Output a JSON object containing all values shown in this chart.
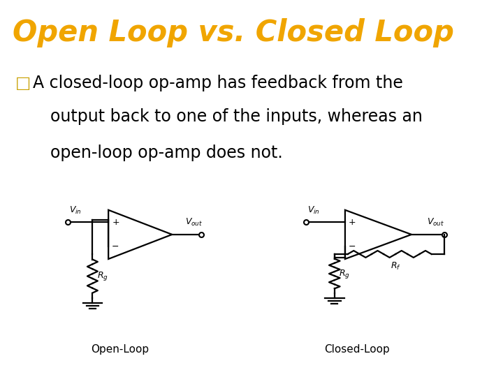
{
  "title": "Open Loop vs. Closed Loop",
  "title_color": "#f0a500",
  "title_bg_color": "#111111",
  "body_bg_color": "#ffffff",
  "text_color": "#000000",
  "bullet_color": "#c8a000",
  "label_open": "Open-Loop",
  "label_closed": "Closed-Loop",
  "font_size_title": 30,
  "font_size_body": 17,
  "font_size_label": 11
}
